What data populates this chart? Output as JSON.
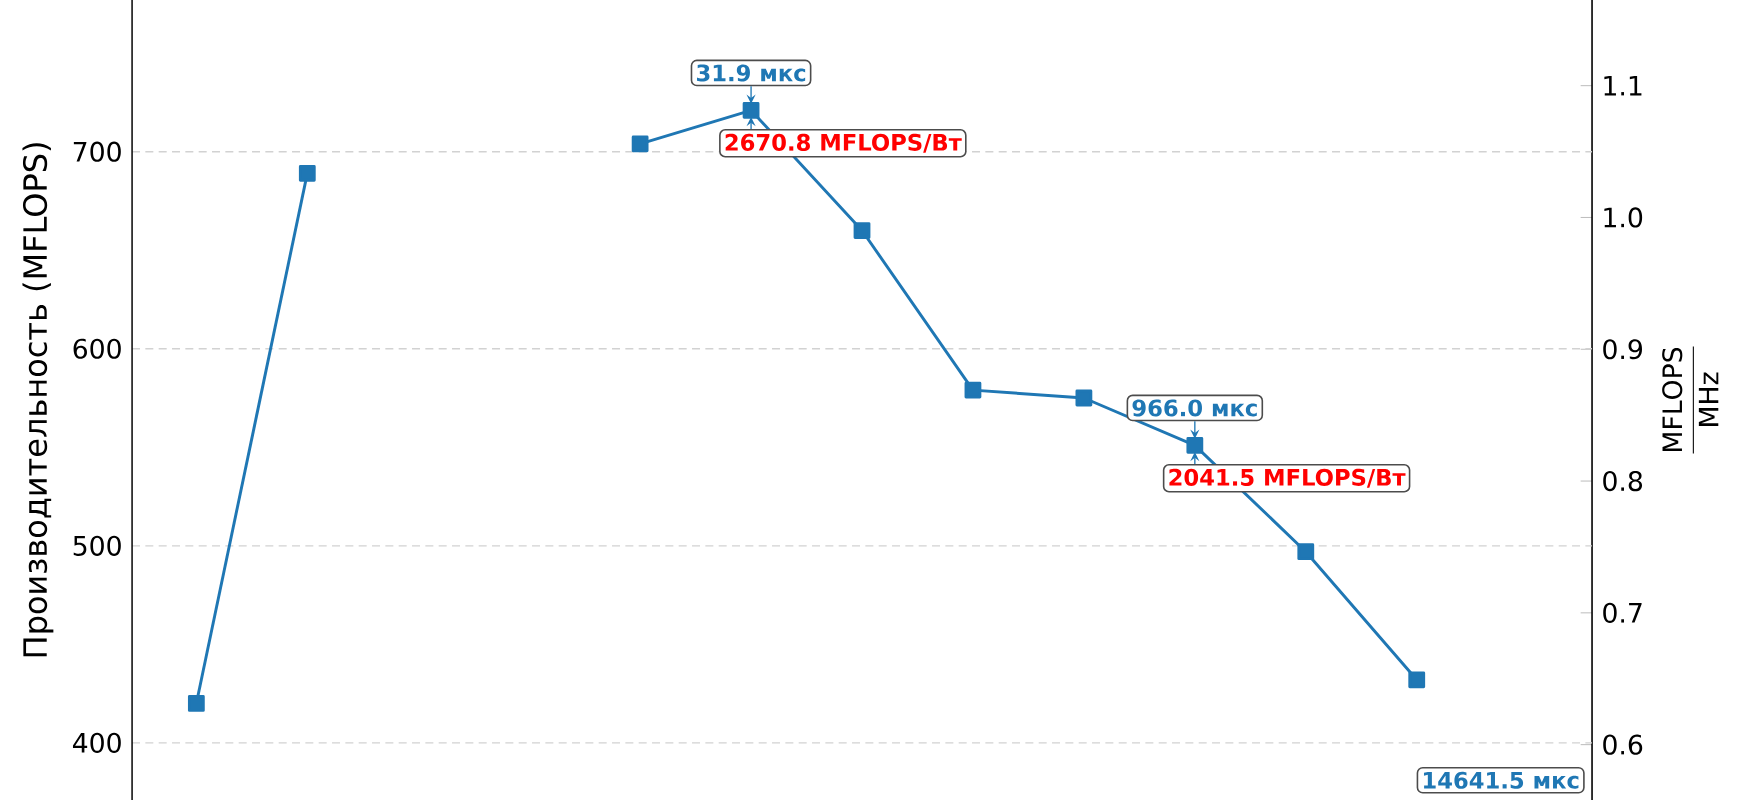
{
  "chart_data": {
    "type": "line",
    "categories": [
      null,
      null,
      null,
      null,
      null,
      null,
      null,
      null,
      null,
      null,
      null,
      null,
      null
    ],
    "series": [
      {
        "color": "#1f77b4",
        "values": [
          420,
          689,
          null,
          null,
          null,
          null,
          null,
          null,
          null,
          null,
          null,
          null,
          null
        ]
      },
      {
        "color": "#1f77b4",
        "values": [
          null,
          null,
          null,
          null,
          704,
          721,
          660,
          579,
          575,
          551,
          497,
          432,
          null
        ]
      }
    ],
    "ylabel": "Производительность (MFLOPS)",
    "y2label": "\\frac{\\mathrm{MFLOPS}}{\\mathrm{MHz}}",
    "ylim": [
      371,
      777
    ],
    "yticks": [
      400,
      500,
      600,
      700
    ],
    "y2lim": [
      0.558,
      1.165
    ],
    "y2ticks": [
      0.6,
      0.7,
      0.8,
      0.9,
      {
        "value": 1.0,
        "label": "1.0"
      },
      1.1
    ],
    "annotations": [
      {
        "text": "31.9 мкс",
        "y": 721
      },
      "2670.8 MFLOPS/Вт",
      {
        "text": "966.0 мкс",
        "y": 551
      },
      "2041.5 MFLOPS/Вт",
      "14641.5 мкс"
    ],
    "grid": true,
    "marker": "square",
    "line_style": "solid",
    "tick_labels": "y"
  }
}
